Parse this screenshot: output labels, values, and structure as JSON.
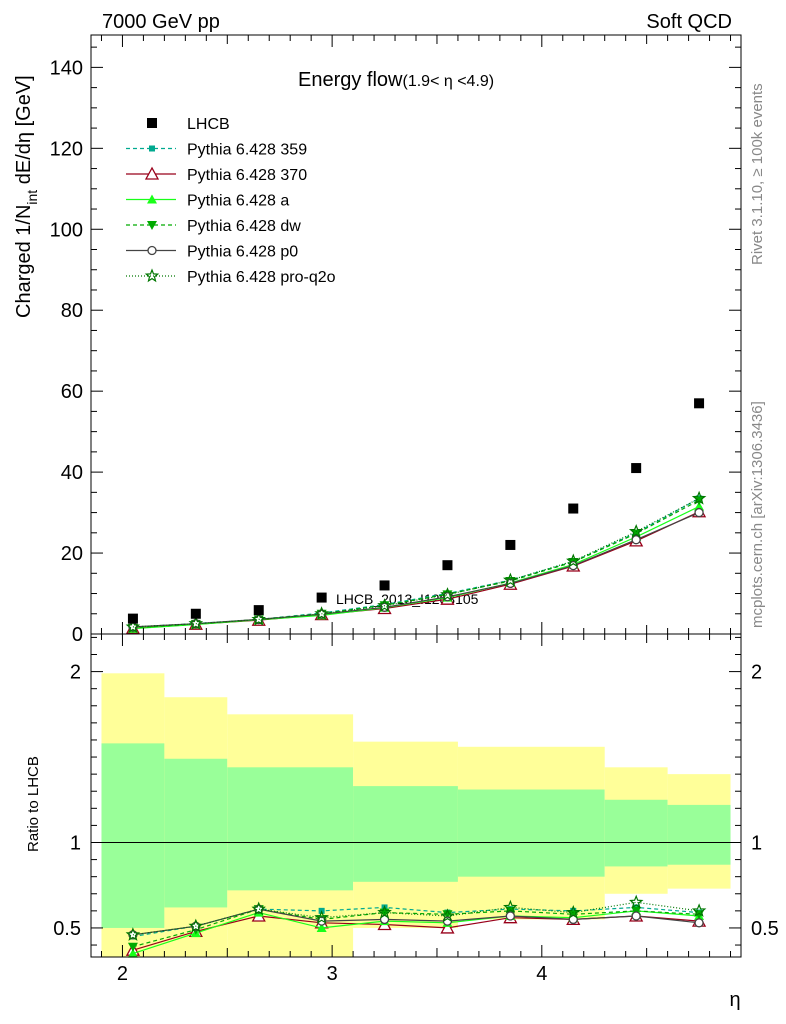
{
  "header": {
    "left": "7000 GeV pp",
    "right": "Soft QCD"
  },
  "side": {
    "rivet": "Rivet 3.1.10, ≥ 100k events",
    "mcplots": "mcplots.cern.ch [arXiv:1306.3436]"
  },
  "watermark": "LHCB_2013_I1208105",
  "title_main": "Energy flow",
  "title_sub": "(1.9< η <4.9)",
  "ylabel_main": "Charged 1/N",
  "ylabel_sub": "int",
  "ylabel_tail": " dE/dη [GeV]",
  "ylabel_ratio": "Ratio to LHCB",
  "xlabel": "η",
  "chart_data": [
    {
      "type": "scatter",
      "title": "Energy flow (1.9< η <4.9)",
      "xlabel": "η",
      "ylabel": "Charged 1/N_int dE/dη [GeV]",
      "xlim": [
        1.85,
        4.95
      ],
      "ylim": [
        0,
        148
      ],
      "yticks": [
        0,
        20,
        40,
        60,
        80,
        100,
        120,
        140
      ],
      "xticks": [
        2,
        3,
        4
      ],
      "legend_position": "top-left",
      "x": [
        2.05,
        2.35,
        2.65,
        2.95,
        3.25,
        3.55,
        3.85,
        4.15,
        4.45,
        4.75
      ],
      "data": {
        "name": "LHCB",
        "values": [
          3.8,
          5.0,
          5.9,
          9.0,
          12.0,
          17.0,
          22.0,
          31.0,
          41.0,
          57.0
        ],
        "color": "#000000",
        "marker": "square"
      },
      "series": [
        {
          "name": "Pythia 6.428 359",
          "color": "#00a98f",
          "dash": "4,3",
          "marker": "square-small",
          "values": [
            1.7,
            2.6,
            3.6,
            5.2,
            7.3,
            10.0,
            13.3,
            17.9,
            25.0,
            33.5
          ]
        },
        {
          "name": "Pythia 6.428 370",
          "color": "#99001a",
          "dash": "",
          "marker": "triangle-open",
          "values": [
            1.4,
            2.4,
            3.4,
            4.8,
            6.3,
            8.6,
            12.3,
            16.8,
            23.0,
            30.2
          ]
        },
        {
          "name": "Pythia 6.428 a",
          "color": "#19ff19",
          "dash": "",
          "marker": "triangle-filled",
          "values": [
            1.3,
            2.35,
            3.5,
            4.6,
            6.5,
            9.0,
            12.6,
            17.2,
            24.0,
            31.5
          ]
        },
        {
          "name": "Pythia 6.428 dw",
          "color": "#00aa00",
          "dash": "4,3",
          "marker": "triangle-down",
          "values": [
            1.5,
            2.5,
            3.6,
            5.0,
            7.1,
            9.8,
            13.1,
            17.8,
            24.8,
            33.0
          ]
        },
        {
          "name": "Pythia 6.428 p0",
          "color": "#444444",
          "dash": "",
          "marker": "circle-open",
          "values": [
            1.75,
            2.55,
            3.6,
            4.9,
            6.6,
            9.2,
            12.5,
            16.9,
            23.3,
            30.0
          ]
        },
        {
          "name": "Pythia 6.428 pro-q2o",
          "color": "#007700",
          "dash": "1,2",
          "marker": "star",
          "values": [
            1.75,
            2.55,
            3.6,
            5.0,
            7.0,
            9.7,
            13.3,
            18.0,
            25.3,
            33.5
          ]
        }
      ]
    },
    {
      "type": "line",
      "ylabel": "Ratio to LHCB",
      "xlabel": "η",
      "xlim": [
        1.85,
        4.95
      ],
      "ylim": [
        0.33,
        2.22
      ],
      "yticks": [
        0.5,
        1,
        2
      ],
      "x": [
        2.05,
        2.35,
        2.65,
        2.95,
        3.25,
        3.55,
        3.85,
        4.15,
        4.45,
        4.75
      ],
      "bin_edges": [
        1.9,
        2.2,
        2.5,
        3.1,
        3.6,
        4.3,
        4.6,
        4.9
      ],
      "band_inner_upper": [
        1.58,
        1.49,
        1.44,
        1.33,
        1.31,
        1.25,
        1.22
      ],
      "band_inner_lower": [
        0.5,
        0.62,
        0.72,
        0.77,
        0.8,
        0.86,
        0.87
      ],
      "band_outer_upper": [
        1.99,
        1.85,
        1.75,
        1.59,
        1.56,
        1.44,
        1.4
      ],
      "band_outer_lower": [
        0.0,
        0.0,
        0.0,
        0.5,
        0.55,
        0.7,
        0.73
      ],
      "reference": 1.0,
      "series": [
        {
          "name": "Pythia 6.428 359",
          "values": [
            0.45,
            0.51,
            0.61,
            0.6,
            0.62,
            0.59,
            0.61,
            0.6,
            0.62,
            0.59
          ]
        },
        {
          "name": "Pythia 6.428 370",
          "values": [
            0.37,
            0.48,
            0.57,
            0.53,
            0.52,
            0.5,
            0.56,
            0.55,
            0.57,
            0.54
          ]
        },
        {
          "name": "Pythia 6.428 a",
          "values": [
            0.35,
            0.47,
            0.59,
            0.5,
            0.54,
            0.53,
            0.57,
            0.56,
            0.6,
            0.57
          ]
        },
        {
          "name": "Pythia 6.428 dw",
          "values": [
            0.39,
            0.49,
            0.61,
            0.55,
            0.59,
            0.58,
            0.6,
            0.58,
            0.6,
            0.58
          ]
        },
        {
          "name": "Pythia 6.428 p0",
          "values": [
            0.46,
            0.51,
            0.61,
            0.54,
            0.55,
            0.54,
            0.57,
            0.55,
            0.57,
            0.53
          ]
        },
        {
          "name": "Pythia 6.428 pro-q2o",
          "values": [
            0.46,
            0.51,
            0.61,
            0.56,
            0.59,
            0.57,
            0.62,
            0.59,
            0.65,
            0.6
          ]
        }
      ]
    }
  ]
}
